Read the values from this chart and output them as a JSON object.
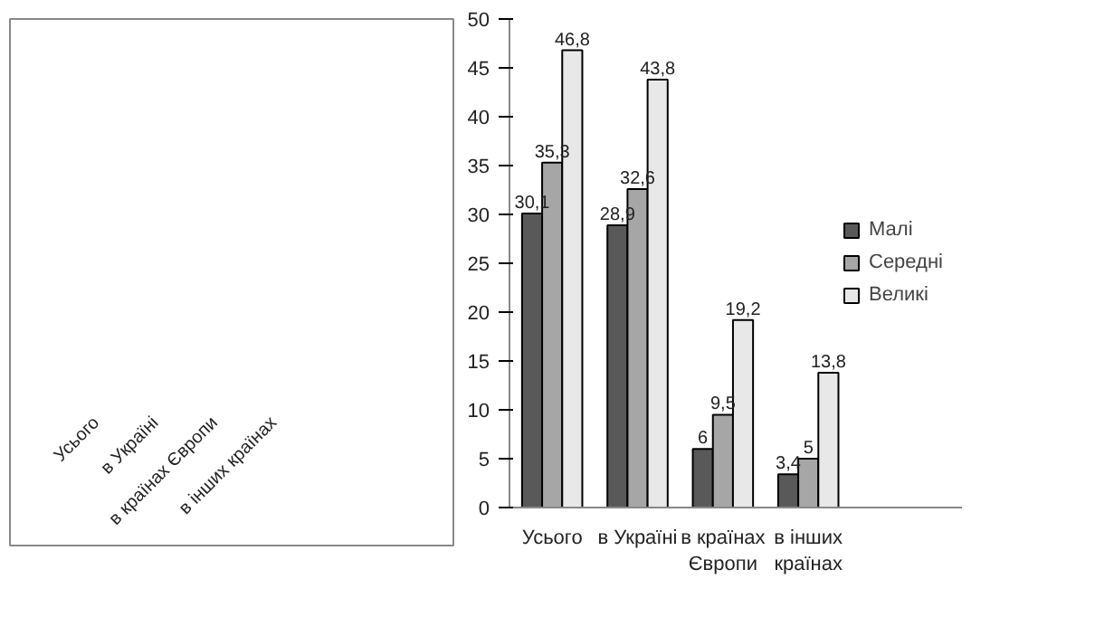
{
  "chart_data": [
    {
      "type": "other",
      "categories": [
        "Усього",
        "в Україні",
        "в країнах Європи",
        "в інших країнах"
      ]
    },
    {
      "type": "bar",
      "categories": [
        "Усього",
        "в Україні",
        "в країнах Європи",
        "в інших країнах"
      ],
      "series": [
        {
          "name": "Малі",
          "color": "#595959",
          "values": [
            30.1,
            28.9,
            6,
            3.4
          ],
          "value_labels": [
            "30,1",
            "28,9",
            "6",
            "3,4"
          ]
        },
        {
          "name": "Середні",
          "color": "#a6a6a6",
          "values": [
            35.3,
            32.6,
            9.5,
            5
          ],
          "value_labels": [
            "35,3",
            "32,6",
            "9,5",
            "5"
          ]
        },
        {
          "name": "Великі",
          "color": "#e8e8e8",
          "values": [
            46.8,
            43.8,
            19.2,
            13.8
          ],
          "value_labels": [
            "46,8",
            "43,8",
            "19,2",
            "13,8"
          ]
        }
      ],
      "ylim": [
        0,
        50
      ],
      "yticks": [
        0,
        5,
        10,
        15,
        20,
        25,
        30,
        35,
        40,
        45,
        50
      ],
      "grid": false,
      "legend": "right"
    }
  ]
}
